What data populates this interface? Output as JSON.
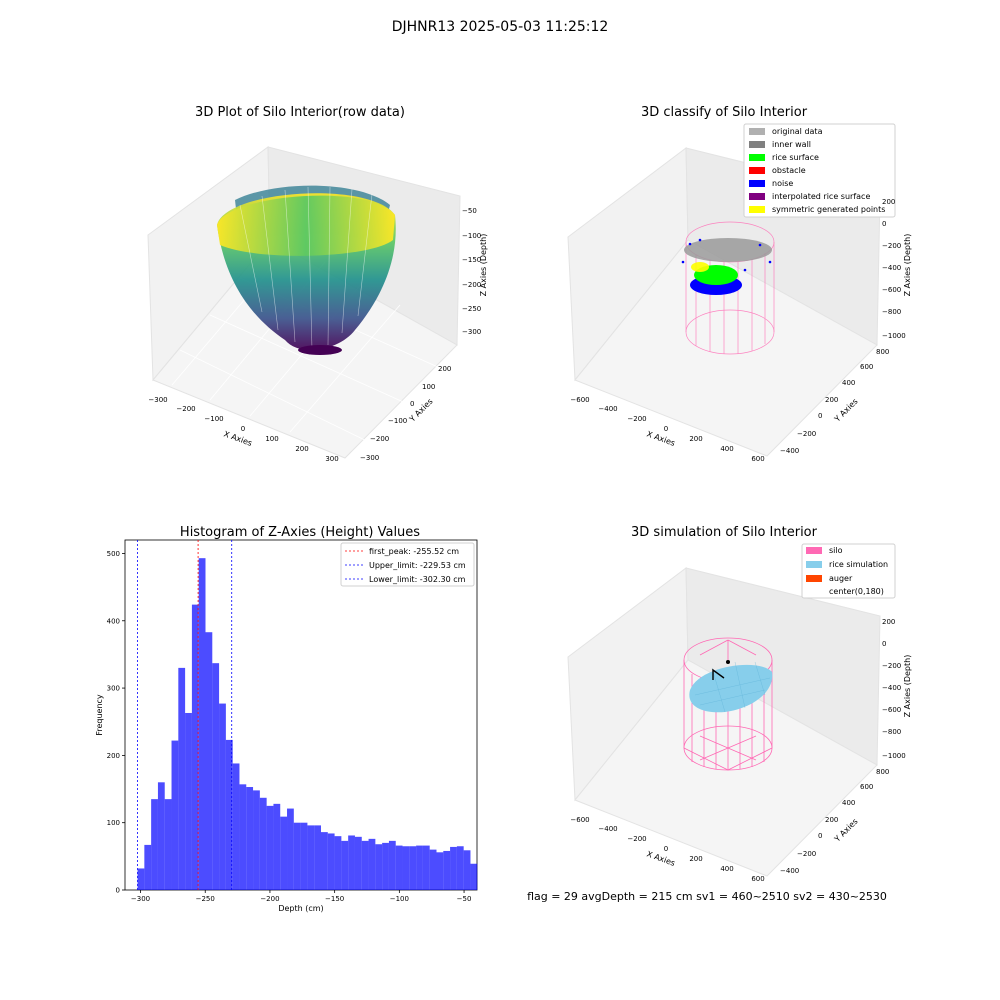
{
  "figure": {
    "suptitle": "DJHNR13 2025-05-03 11:25:12",
    "info_line": "flag = 29  avgDepth = 215 cm  sv1 = 460~2510  sv2 = 430~2530"
  },
  "panels": {
    "raw": {
      "title": "3D Plot of Silo Interior(row data)",
      "xlabel": "X Axies",
      "ylabel": "Y Axies",
      "zlabel": "Z Axies (Depth)",
      "xticks": [
        "−300",
        "−200",
        "−100",
        "0",
        "100",
        "200",
        "300"
      ],
      "yticks": [
        "−300",
        "−200",
        "−100",
        "0",
        "100",
        "200"
      ],
      "zticks": [
        "−50",
        "−100",
        "−150",
        "−200",
        "−250",
        "−300"
      ]
    },
    "classify": {
      "title": "3D classify of Silo Interior",
      "xlabel": "X Axies",
      "ylabel": "Y Axies",
      "zlabel": "Z Axies (Depth)",
      "xticks": [
        "−600",
        "−400",
        "−200",
        "0",
        "200",
        "400",
        "600"
      ],
      "yticks": [
        "−400",
        "−200",
        "0",
        "200",
        "400",
        "600",
        "800"
      ],
      "zticks": [
        "200",
        "0",
        "−200",
        "−400",
        "−600",
        "−800",
        "−1000"
      ],
      "legend": [
        {
          "label": "original data",
          "color": "#b0b0b0"
        },
        {
          "label": "inner wall",
          "color": "#808080"
        },
        {
          "label": "rice surface",
          "color": "#00ff00"
        },
        {
          "label": "obstacle",
          "color": "#ff0000"
        },
        {
          "label": "noise",
          "color": "#0000ff"
        },
        {
          "label": "interpolated rice surface",
          "color": "#800080"
        },
        {
          "label": "symmetric generated points",
          "color": "#ffff00"
        }
      ]
    },
    "simulation": {
      "title": "3D simulation of Silo Interior",
      "xlabel": "X Axies",
      "ylabel": "Y Axies",
      "zlabel": "Z Axies (Depth)",
      "xticks": [
        "−600",
        "−400",
        "−200",
        "0",
        "200",
        "400",
        "600"
      ],
      "yticks": [
        "−400",
        "−200",
        "0",
        "200",
        "400",
        "600",
        "800"
      ],
      "zticks": [
        "200",
        "0",
        "−200",
        "−400",
        "−600",
        "−800",
        "−1000"
      ],
      "legend": [
        {
          "label": "silo",
          "color": "#ff69b4"
        },
        {
          "label": "rice simulation",
          "color": "#87ceeb"
        },
        {
          "label": "auger",
          "color": "#ff4500"
        },
        {
          "label": "center(0,180)",
          "color": "#ffffff"
        }
      ]
    }
  },
  "chart_data": {
    "type": "bar",
    "title": "Histogram of Z-Axies (Height) Values",
    "xlabel": "Depth (cm)",
    "ylabel": "Frequency",
    "xlim": [
      -312,
      -40
    ],
    "ylim": [
      0,
      520
    ],
    "xticks": [
      -300,
      -250,
      -200,
      -150,
      -100,
      -50
    ],
    "yticks": [
      0,
      100,
      200,
      300,
      400,
      500
    ],
    "bar_color": "#0000ff",
    "bin_start": -302.3,
    "bin_width": 5.25,
    "values": [
      32,
      67,
      135,
      160,
      135,
      222,
      330,
      263,
      424,
      493,
      383,
      337,
      277,
      223,
      188,
      157,
      153,
      148,
      137,
      125,
      128,
      109,
      121,
      100,
      100,
      96,
      96,
      86,
      84,
      80,
      73,
      81,
      79,
      73,
      76,
      68,
      70,
      73,
      66,
      65,
      65,
      66,
      66,
      60,
      56,
      58,
      64,
      65,
      59,
      39
    ],
    "vlines": [
      {
        "label": "first_peak: -255.52 cm",
        "x": -255.52,
        "color": "#ff0000"
      },
      {
        "label": "Upper_limit: -229.53 cm",
        "x": -229.53,
        "color": "#0000ff"
      },
      {
        "label": "Lower_limit: -302.30 cm",
        "x": -302.3,
        "color": "#0000ff"
      }
    ],
    "legend_position": "upper right"
  }
}
